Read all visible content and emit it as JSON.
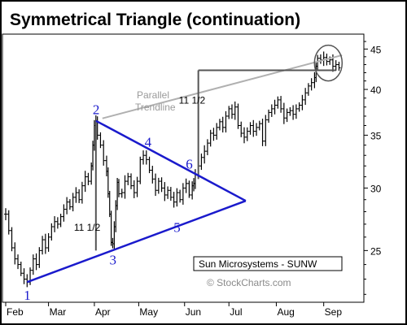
{
  "chart_data": {
    "type": "ohlc",
    "title": "Symmetrical Triangle (continuation)",
    "stock_label": "Sun Microsystems - SUNW",
    "copyright": "© StockCharts.com",
    "x_ticks": [
      "Feb",
      "Mar",
      "Apr",
      "May",
      "Jun",
      "Jul",
      "Aug",
      "Sep"
    ],
    "y_ticks": [
      25,
      30,
      35,
      40,
      45
    ],
    "y_scale": "log",
    "ylim": [
      21.5,
      47
    ],
    "x_domain": [
      0,
      230
    ],
    "x_tick_positions": [
      0,
      28,
      58,
      87,
      117,
      146,
      177,
      208
    ],
    "series_points": [
      [
        0,
        27.8
      ],
      [
        2,
        26.5
      ],
      [
        4,
        25.2
      ],
      [
        6,
        24.4
      ],
      [
        8,
        24.0
      ],
      [
        10,
        23.4
      ],
      [
        12,
        23.0
      ],
      [
        14,
        22.8
      ],
      [
        16,
        23.6
      ],
      [
        18,
        24.4
      ],
      [
        20,
        24.0
      ],
      [
        22,
        25.0
      ],
      [
        24,
        25.8
      ],
      [
        26,
        25.2
      ],
      [
        28,
        26.0
      ],
      [
        30,
        26.8
      ],
      [
        32,
        27.2
      ],
      [
        34,
        27.0
      ],
      [
        36,
        27.6
      ],
      [
        38,
        28.2
      ],
      [
        40,
        28.8
      ],
      [
        42,
        28.4
      ],
      [
        44,
        29.2
      ],
      [
        46,
        29.6
      ],
      [
        48,
        29.0
      ],
      [
        50,
        30.2
      ],
      [
        52,
        31.0
      ],
      [
        54,
        30.6
      ],
      [
        56,
        32.0
      ],
      [
        57,
        34.0
      ],
      [
        58,
        36.0
      ],
      [
        59,
        36.5
      ],
      [
        60,
        35.0
      ],
      [
        62,
        34.0
      ],
      [
        64,
        32.5
      ],
      [
        66,
        31.5
      ],
      [
        67,
        29.5
      ],
      [
        68,
        27.8
      ],
      [
        69,
        25.6
      ],
      [
        70,
        25.5
      ],
      [
        71,
        26.8
      ],
      [
        72,
        28.5
      ],
      [
        73,
        30.5
      ],
      [
        74,
        29.5
      ],
      [
        76,
        29.6
      ],
      [
        78,
        30.6
      ],
      [
        80,
        31.0
      ],
      [
        82,
        30.2
      ],
      [
        84,
        29.6
      ],
      [
        86,
        30.6
      ],
      [
        88,
        32.6
      ],
      [
        90,
        33.0
      ],
      [
        92,
        32.6
      ],
      [
        94,
        31.6
      ],
      [
        96,
        30.8
      ],
      [
        98,
        29.8
      ],
      [
        100,
        30.6
      ],
      [
        102,
        30.0
      ],
      [
        104,
        29.4
      ],
      [
        106,
        29.8
      ],
      [
        108,
        29.2
      ],
      [
        110,
        28.8
      ],
      [
        112,
        29.6
      ],
      [
        114,
        29.0
      ],
      [
        116,
        30.0
      ],
      [
        118,
        30.4
      ],
      [
        120,
        29.4
      ],
      [
        122,
        30.2
      ],
      [
        123,
        30.4
      ],
      [
        124,
        31.2
      ],
      [
        126,
        32.0
      ],
      [
        128,
        32.8
      ],
      [
        130,
        33.4
      ],
      [
        132,
        34.2
      ],
      [
        134,
        35.2
      ],
      [
        136,
        35.0
      ],
      [
        138,
        35.8
      ],
      [
        140,
        36.4
      ],
      [
        142,
        35.8
      ],
      [
        144,
        37.0
      ],
      [
        146,
        37.8
      ],
      [
        148,
        37.2
      ],
      [
        150,
        38.0
      ],
      [
        152,
        36.0
      ],
      [
        154,
        35.2
      ],
      [
        156,
        34.8
      ],
      [
        158,
        35.4
      ],
      [
        160,
        36.0
      ],
      [
        162,
        35.4
      ],
      [
        164,
        35.8
      ],
      [
        166,
        36.2
      ],
      [
        168,
        34.4
      ],
      [
        170,
        36.6
      ],
      [
        172,
        37.4
      ],
      [
        174,
        37.8
      ],
      [
        176,
        38.2
      ],
      [
        178,
        38.8
      ],
      [
        180,
        37.8
      ],
      [
        182,
        36.8
      ],
      [
        184,
        37.4
      ],
      [
        186,
        37.6
      ],
      [
        188,
        37.2
      ],
      [
        190,
        37.8
      ],
      [
        192,
        38.2
      ],
      [
        194,
        38.8
      ],
      [
        196,
        39.6
      ],
      [
        198,
        40.4
      ],
      [
        200,
        40.8
      ],
      [
        202,
        41.4
      ],
      [
        203,
        42.8
      ],
      [
        204,
        43.8
      ],
      [
        206,
        43.6
      ],
      [
        208,
        43.9
      ],
      [
        210,
        43.4
      ],
      [
        212,
        43.6
      ],
      [
        214,
        42.8
      ],
      [
        216,
        43.0
      ],
      [
        218,
        42.6
      ]
    ],
    "triangle": {
      "upper_line": [
        [
          59,
          36.5
        ],
        [
          157,
          28.9
        ]
      ],
      "lower_line": [
        [
          14,
          22.8
        ],
        [
          157,
          28.9
        ]
      ]
    },
    "point_labels": [
      {
        "text": "1",
        "x": 14,
        "y": 22.8
      },
      {
        "text": "2",
        "x": 59,
        "y": 36.5
      },
      {
        "text": "3",
        "x": 70,
        "y": 25.3
      },
      {
        "text": "4",
        "x": 93,
        "y": 33.2
      },
      {
        "text": "5",
        "x": 113,
        "y": 27.8
      },
      {
        "text": "6",
        "x": 121,
        "y": 31.0
      }
    ],
    "measure_labels": [
      "11 1/2",
      "11 1/2"
    ],
    "measurements": [
      {
        "x": 59,
        "from": 25.0,
        "to": 36.5
      },
      {
        "x": 126,
        "from": 30.8,
        "to": 42.3
      }
    ],
    "parallel_trendline_label": [
      "Parallel",
      "Trendline"
    ],
    "parallel_trendline": [
      [
        59,
        36.5
      ],
      [
        220,
        44.2
      ]
    ],
    "target_line_y": 42.3
  }
}
